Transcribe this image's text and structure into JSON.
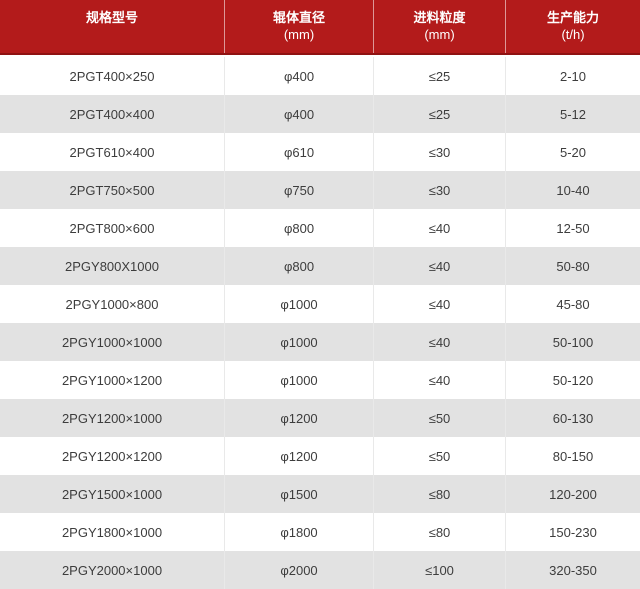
{
  "colors": {
    "header_bg": "#b31b1b",
    "header_border_bottom": "#8f1212",
    "header_text": "#ffffff",
    "row_bg": "#ffffff",
    "row_alt_bg": "#e2e2e2",
    "body_text": "#3d3d3d",
    "cell_divider": "#e9e9e9"
  },
  "chart_data": {
    "type": "table",
    "columns": [
      {
        "title": "规格型号",
        "unit": ""
      },
      {
        "title": "辊体直径",
        "unit": "(mm)"
      },
      {
        "title": "进料粒度",
        "unit": "(mm)"
      },
      {
        "title": "生产能力",
        "unit": "(t/h)"
      }
    ],
    "rows": [
      [
        "2PGT400×250",
        "φ400",
        "≤25",
        "2-10"
      ],
      [
        "2PGT400×400",
        "φ400",
        "≤25",
        "5-12"
      ],
      [
        "2PGT610×400",
        "φ610",
        "≤30",
        "5-20"
      ],
      [
        "2PGT750×500",
        "φ750",
        "≤30",
        "10-40"
      ],
      [
        "2PGT800×600",
        "φ800",
        "≤40",
        "12-50"
      ],
      [
        "2PGY800X1000",
        "φ800",
        "≤40",
        "50-80"
      ],
      [
        "2PGY1000×800",
        "φ1000",
        "≤40",
        "45-80"
      ],
      [
        "2PGY1000×1000",
        "φ1000",
        "≤40",
        "50-100"
      ],
      [
        "2PGY1000×1200",
        "φ1000",
        "≤40",
        "50-120"
      ],
      [
        "2PGY1200×1000",
        "φ1200",
        "≤50",
        "60-130"
      ],
      [
        "2PGY1200×1200",
        "φ1200",
        "≤50",
        "80-150"
      ],
      [
        "2PGY1500×1000",
        "φ1500",
        "≤80",
        "120-200"
      ],
      [
        "2PGY1800×1000",
        "φ1800",
        "≤80",
        "150-230"
      ],
      [
        "2PGY2000×1000",
        "φ2000",
        "≤100",
        "320-350"
      ]
    ]
  }
}
